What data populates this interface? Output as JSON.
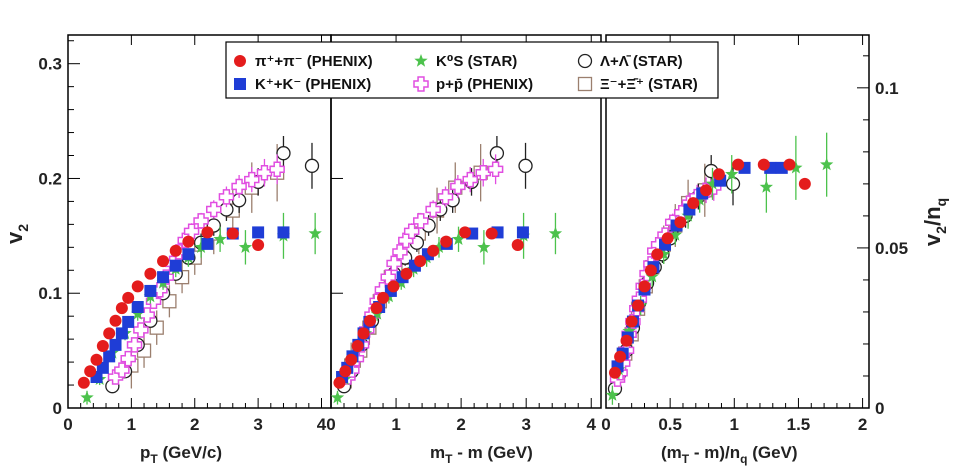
{
  "figure": {
    "y_left_label": "v",
    "y_left_sub": "2",
    "y_right_label": "v",
    "y_right_sub": "2",
    "y_right_tail": "/n",
    "y_right_tail_sub": "q"
  },
  "legend": [
    {
      "key": "pi",
      "label": "π⁺+π⁻ (PHENIX)",
      "color": "#e41c1c",
      "marker": "circle-filled"
    },
    {
      "key": "K",
      "label": "K⁺+K⁻ (PHENIX)",
      "color": "#1f3dd6",
      "marker": "square-filled"
    },
    {
      "key": "K0s",
      "label": "K⁰S (STAR)",
      "color": "#4cc24c",
      "marker": "star"
    },
    {
      "key": "p",
      "label": "p+p̄ (PHENIX)",
      "color": "#e14ee1",
      "marker": "cross-open"
    },
    {
      "key": "Lambda",
      "label": "Λ+Λ̄ (STAR)",
      "color": "#222222",
      "marker": "circle-open"
    },
    {
      "key": "Xi",
      "label": "Ξ⁻+Ξ̄⁺ (STAR)",
      "color": "#9b7f6e",
      "marker": "square-open"
    }
  ],
  "chart_data": [
    {
      "type": "scatter",
      "panel": "left",
      "xlabel": "p_T (GeV/c)",
      "xlabel_main": "p",
      "xlabel_sub": "T",
      "xlabel_tail": " (GeV/c)",
      "ylabel": "v_2",
      "xlim": [
        0,
        4.15
      ],
      "ylim": [
        0,
        0.325
      ],
      "xticks": [
        "0",
        "1",
        "2",
        "3",
        "4"
      ],
      "yticks": [
        "0",
        "0.1",
        "0.2",
        "0.3"
      ],
      "series": [
        {
          "name": "π⁺+π⁻ (PHENIX)",
          "x": [
            0.25,
            0.35,
            0.45,
            0.55,
            0.65,
            0.75,
            0.85,
            0.95,
            1.1,
            1.3,
            1.5,
            1.7,
            1.9,
            2.2,
            2.6,
            3.0
          ],
          "y": [
            0.022,
            0.032,
            0.042,
            0.054,
            0.065,
            0.076,
            0.087,
            0.096,
            0.106,
            0.117,
            0.128,
            0.137,
            0.145,
            0.153,
            0.152,
            0.142
          ]
        },
        {
          "name": "K⁺+K⁻ (PHENIX)",
          "x": [
            0.45,
            0.55,
            0.65,
            0.75,
            0.85,
            0.95,
            1.1,
            1.3,
            1.5,
            1.7,
            1.9,
            2.2,
            2.6,
            3.0,
            3.4
          ],
          "y": [
            0.027,
            0.035,
            0.045,
            0.055,
            0.065,
            0.075,
            0.088,
            0.102,
            0.114,
            0.124,
            0.134,
            0.143,
            0.152,
            0.153,
            0.153
          ]
        },
        {
          "name": "K⁰S (STAR)",
          "x": [
            0.3,
            0.5,
            0.7,
            0.9,
            1.1,
            1.3,
            1.5,
            1.7,
            1.9,
            2.1,
            2.4,
            2.8,
            3.4,
            3.9
          ],
          "y": [
            0.009,
            0.025,
            0.048,
            0.065,
            0.082,
            0.097,
            0.109,
            0.121,
            0.131,
            0.14,
            0.147,
            0.14,
            0.15,
            0.152
          ],
          "err": [
            0.006,
            0.005,
            0.006,
            0.006,
            0.006,
            0.006,
            0.006,
            0.007,
            0.008,
            0.009,
            0.011,
            0.015,
            0.02,
            0.018
          ]
        },
        {
          "name": "p+p̄ (PHENIX)",
          "x": [
            0.75,
            0.85,
            0.95,
            1.05,
            1.15,
            1.25,
            1.35,
            1.45,
            1.55,
            1.65,
            1.75,
            1.85,
            1.95,
            2.1,
            2.3,
            2.5,
            2.7,
            2.9,
            3.1,
            3.3
          ],
          "y": [
            0.027,
            0.033,
            0.043,
            0.055,
            0.068,
            0.081,
            0.093,
            0.103,
            0.114,
            0.126,
            0.136,
            0.146,
            0.154,
            0.163,
            0.173,
            0.184,
            0.193,
            0.199,
            0.205,
            0.208
          ],
          "err": [
            0.004,
            0.004,
            0.004,
            0.004,
            0.005,
            0.005,
            0.005,
            0.005,
            0.006,
            0.006,
            0.006,
            0.006,
            0.007,
            0.007,
            0.008,
            0.009,
            0.01,
            0.011,
            0.012,
            0.013
          ]
        },
        {
          "name": "Λ+Λ̄ (STAR)",
          "x": [
            0.7,
            0.9,
            1.1,
            1.3,
            1.5,
            1.7,
            1.9,
            2.1,
            2.3,
            2.5,
            2.7,
            3.0,
            3.4,
            3.85
          ],
          "y": [
            0.019,
            0.032,
            0.055,
            0.076,
            0.1,
            0.117,
            0.131,
            0.144,
            0.159,
            0.173,
            0.181,
            0.197,
            0.222,
            0.211
          ],
          "err": [
            0.005,
            0.005,
            0.005,
            0.005,
            0.006,
            0.006,
            0.007,
            0.008,
            0.009,
            0.01,
            0.011,
            0.012,
            0.015,
            0.02
          ]
        },
        {
          "name": "Ξ⁻+Ξ̄⁺ (STAR)",
          "x": [
            1.0,
            1.2,
            1.4,
            1.6,
            1.8,
            2.0,
            2.3,
            2.6,
            2.9,
            3.3
          ],
          "y": [
            0.037,
            0.05,
            0.07,
            0.093,
            0.114,
            0.131,
            0.152,
            0.172,
            0.192,
            0.205
          ],
          "err": [
            0.02,
            0.015,
            0.015,
            0.014,
            0.014,
            0.015,
            0.018,
            0.02,
            0.022,
            0.025
          ]
        }
      ]
    },
    {
      "type": "scatter",
      "panel": "middle",
      "xlabel": "m_T - m (GeV)",
      "xlabel_main": "m",
      "xlabel_sub": "T",
      "xlabel_tail": " - m (GeV)",
      "xlim": [
        0,
        4.15
      ],
      "ylim": [
        0,
        0.325
      ],
      "xticks": [
        "0",
        "1",
        "2",
        "3",
        "4"
      ],
      "series": [
        {
          "name": "π⁺+π⁻ (PHENIX)",
          "x": [
            0.13,
            0.22,
            0.31,
            0.41,
            0.5,
            0.6,
            0.7,
            0.8,
            0.96,
            1.16,
            1.37,
            1.57,
            1.77,
            2.06,
            2.47,
            2.87
          ],
          "y": [
            0.022,
            0.032,
            0.042,
            0.054,
            0.065,
            0.076,
            0.087,
            0.096,
            0.106,
            0.117,
            0.128,
            0.137,
            0.145,
            0.153,
            0.152,
            0.142
          ]
        },
        {
          "name": "K⁺+K⁻ (PHENIX)",
          "x": [
            0.17,
            0.25,
            0.33,
            0.42,
            0.5,
            0.59,
            0.74,
            0.92,
            1.1,
            1.29,
            1.49,
            1.78,
            2.17,
            2.56,
            2.95
          ],
          "y": [
            0.027,
            0.035,
            0.045,
            0.055,
            0.065,
            0.075,
            0.088,
            0.102,
            0.114,
            0.124,
            0.134,
            0.143,
            0.152,
            0.153,
            0.153
          ]
        },
        {
          "name": "K⁰S (STAR)",
          "x": [
            0.1,
            0.21,
            0.36,
            0.53,
            0.71,
            0.89,
            1.08,
            1.27,
            1.47,
            1.66,
            1.96,
            2.35,
            2.96,
            3.45
          ],
          "y": [
            0.009,
            0.025,
            0.048,
            0.065,
            0.082,
            0.097,
            0.109,
            0.121,
            0.131,
            0.14,
            0.147,
            0.14,
            0.15,
            0.152
          ],
          "err": [
            0.006,
            0.005,
            0.006,
            0.006,
            0.006,
            0.006,
            0.006,
            0.007,
            0.008,
            0.009,
            0.011,
            0.015,
            0.02,
            0.018
          ]
        },
        {
          "name": "p+p̄ (PHENIX)",
          "x": [
            0.26,
            0.32,
            0.39,
            0.47,
            0.55,
            0.63,
            0.71,
            0.79,
            0.88,
            0.97,
            1.06,
            1.15,
            1.24,
            1.38,
            1.57,
            1.76,
            1.95,
            2.14,
            2.34,
            2.53
          ],
          "y": [
            0.027,
            0.033,
            0.043,
            0.055,
            0.068,
            0.081,
            0.093,
            0.103,
            0.114,
            0.126,
            0.136,
            0.146,
            0.154,
            0.163,
            0.173,
            0.184,
            0.193,
            0.199,
            0.205,
            0.208
          ],
          "err": [
            0.004,
            0.004,
            0.004,
            0.004,
            0.005,
            0.005,
            0.005,
            0.005,
            0.006,
            0.006,
            0.006,
            0.006,
            0.007,
            0.007,
            0.008,
            0.009,
            0.01,
            0.011,
            0.012,
            0.013
          ]
        },
        {
          "name": "Λ+Λ̄ (STAR)",
          "x": [
            0.2,
            0.32,
            0.47,
            0.63,
            0.79,
            0.97,
            1.14,
            1.32,
            1.5,
            1.68,
            1.87,
            2.16,
            2.55,
            2.99
          ],
          "y": [
            0.019,
            0.032,
            0.055,
            0.076,
            0.1,
            0.117,
            0.131,
            0.144,
            0.159,
            0.173,
            0.181,
            0.197,
            0.222,
            0.211
          ],
          "err": [
            0.005,
            0.005,
            0.005,
            0.005,
            0.006,
            0.006,
            0.007,
            0.008,
            0.009,
            0.01,
            0.011,
            0.012,
            0.015,
            0.02
          ]
        },
        {
          "name": "Ξ⁻+Ξ̄⁺ (STAR)",
          "x": [
            0.31,
            0.45,
            0.59,
            0.75,
            0.92,
            1.09,
            1.35,
            1.63,
            1.91,
            2.3
          ],
          "y": [
            0.037,
            0.05,
            0.07,
            0.093,
            0.114,
            0.131,
            0.152,
            0.172,
            0.192,
            0.205
          ],
          "err": [
            0.02,
            0.015,
            0.015,
            0.014,
            0.014,
            0.015,
            0.018,
            0.02,
            0.022,
            0.025
          ]
        }
      ]
    },
    {
      "type": "scatter",
      "panel": "right",
      "xlabel": "(m_T - m)/n_q (GeV)",
      "xlabel_main": "(m",
      "xlabel_sub": "T",
      "xlabel_tail": " - m)/n",
      "xlabel_sub2": "q",
      "xlabel_tail2": " (GeV)",
      "ylabel": "v_2/n_q",
      "xlim": [
        0,
        2.05
      ],
      "ylim": [
        0,
        0.1165
      ],
      "xticks": [
        "0",
        "0.5",
        "1",
        "1.5",
        "2"
      ],
      "yticks": [
        "0",
        "0.05",
        "0.1"
      ],
      "series": [
        {
          "name": "π⁺+π⁻ (PHENIX)",
          "x": [
            0.07,
            0.11,
            0.16,
            0.2,
            0.25,
            0.3,
            0.35,
            0.4,
            0.48,
            0.58,
            0.68,
            0.78,
            0.88,
            1.03,
            1.23,
            1.43,
            1.55
          ],
          "y": [
            0.011,
            0.016,
            0.021,
            0.027,
            0.032,
            0.038,
            0.043,
            0.048,
            0.053,
            0.058,
            0.064,
            0.068,
            0.073,
            0.076,
            0.076,
            0.076,
            0.07
          ]
        },
        {
          "name": "K⁺+K⁻ (PHENIX)",
          "x": [
            0.09,
            0.13,
            0.17,
            0.21,
            0.25,
            0.3,
            0.37,
            0.46,
            0.55,
            0.65,
            0.75,
            0.89,
            1.08,
            1.28,
            1.37
          ],
          "y": [
            0.013,
            0.017,
            0.022,
            0.027,
            0.032,
            0.037,
            0.044,
            0.051,
            0.057,
            0.062,
            0.067,
            0.071,
            0.075,
            0.075,
            0.075
          ]
        },
        {
          "name": "K⁰S (STAR)",
          "x": [
            0.05,
            0.1,
            0.18,
            0.27,
            0.36,
            0.45,
            0.54,
            0.64,
            0.73,
            0.83,
            0.98,
            1.25,
            1.48,
            1.72
          ],
          "y": [
            0.004,
            0.012,
            0.024,
            0.032,
            0.041,
            0.048,
            0.054,
            0.06,
            0.065,
            0.07,
            0.073,
            0.069,
            0.075,
            0.076
          ],
          "err": [
            0.003,
            0.003,
            0.003,
            0.003,
            0.003,
            0.003,
            0.003,
            0.004,
            0.004,
            0.005,
            0.006,
            0.008,
            0.01,
            0.01
          ]
        },
        {
          "name": "p+p̄ (PHENIX)",
          "x": [
            0.09,
            0.11,
            0.13,
            0.16,
            0.18,
            0.21,
            0.24,
            0.26,
            0.29,
            0.32,
            0.35,
            0.38,
            0.41,
            0.46,
            0.52,
            0.59,
            0.65,
            0.71,
            0.78,
            0.84
          ],
          "y": [
            0.009,
            0.011,
            0.014,
            0.018,
            0.023,
            0.027,
            0.031,
            0.034,
            0.038,
            0.042,
            0.045,
            0.049,
            0.051,
            0.054,
            0.058,
            0.061,
            0.064,
            0.066,
            0.068,
            0.069
          ],
          "err": [
            0.0015,
            0.0015,
            0.0015,
            0.0015,
            0.0017,
            0.0017,
            0.0017,
            0.0017,
            0.002,
            0.002,
            0.002,
            0.002,
            0.0023,
            0.0023,
            0.0027,
            0.003,
            0.0033,
            0.0037,
            0.004,
            0.0043
          ]
        },
        {
          "name": "Λ+Λ̄ (STAR)",
          "x": [
            0.07,
            0.11,
            0.16,
            0.21,
            0.26,
            0.32,
            0.38,
            0.44,
            0.5,
            0.56,
            0.62,
            0.72,
            0.82,
            0.99
          ],
          "y": [
            0.006,
            0.011,
            0.018,
            0.025,
            0.033,
            0.039,
            0.044,
            0.048,
            0.053,
            0.058,
            0.06,
            0.066,
            0.074,
            0.07
          ],
          "err": [
            0.0017,
            0.0017,
            0.0017,
            0.0017,
            0.002,
            0.002,
            0.0023,
            0.0027,
            0.003,
            0.0033,
            0.0037,
            0.004,
            0.005,
            0.0067
          ]
        },
        {
          "name": "Ξ⁻+Ξ̄⁺ (STAR)",
          "x": [
            0.1,
            0.15,
            0.2,
            0.25,
            0.31,
            0.36,
            0.45,
            0.54,
            0.64,
            0.77
          ],
          "y": [
            0.012,
            0.017,
            0.023,
            0.031,
            0.038,
            0.044,
            0.051,
            0.057,
            0.064,
            0.068
          ],
          "err": [
            0.0067,
            0.005,
            0.005,
            0.0047,
            0.0047,
            0.005,
            0.006,
            0.0067,
            0.0073,
            0.0083
          ]
        }
      ]
    }
  ]
}
